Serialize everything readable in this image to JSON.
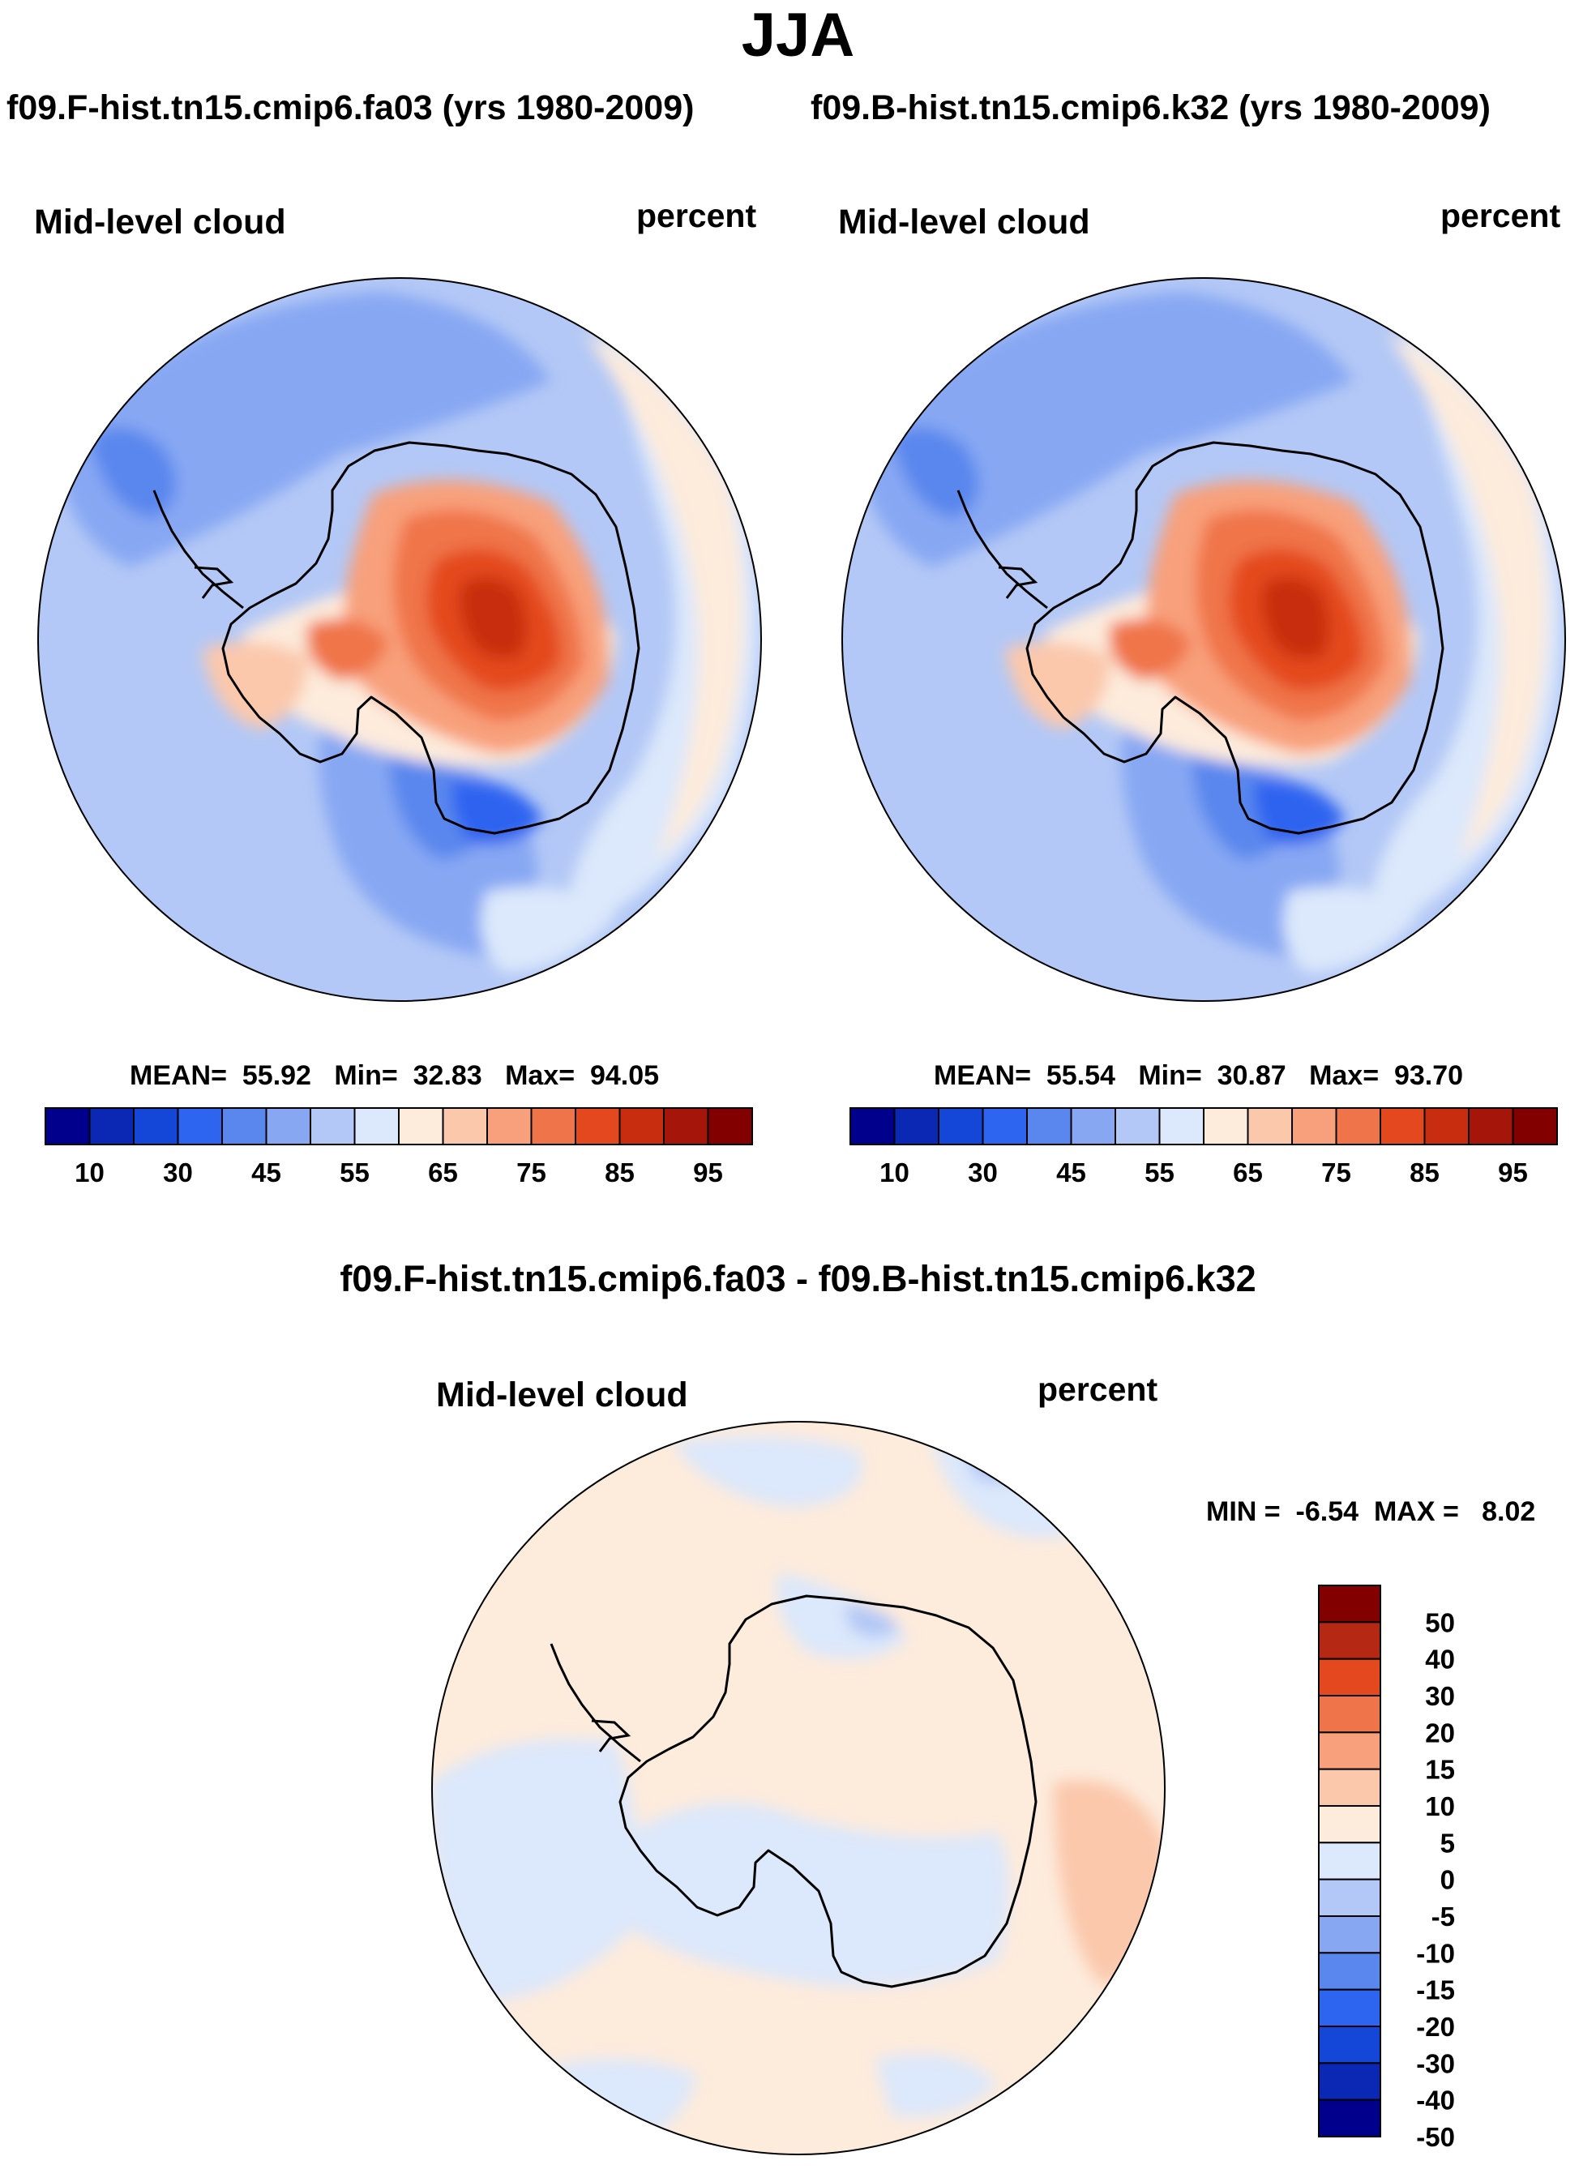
{
  "figure": {
    "season": "JJA",
    "run_a_title": "f09.F-hist.tn15.cmip6.fa03 (yrs 1980-2009)",
    "run_b_title": "f09.B-hist.tn15.cmip6.k32 (yrs 1980-2009)",
    "diff_title": "f09.F-hist.tn15.cmip6.fa03 - f09.B-hist.tn15.cmip6.k32"
  },
  "chart_data": [
    {
      "type": "heatmap",
      "projection": "south-polar-stereographic",
      "variable": "Mid-level cloud",
      "units": "percent",
      "mean_label": "MEAN=",
      "min_label": "Min=",
      "max_label": "Max=",
      "mean": "55.92",
      "min": "32.83",
      "max": "94.05",
      "colorbar": {
        "orientation": "horizontal",
        "levels": [
          10,
          20,
          30,
          40,
          45,
          50,
          55,
          60,
          65,
          70,
          75,
          80,
          85,
          90,
          95
        ],
        "tick_labels": [
          "10",
          "30",
          "45",
          "55",
          "65",
          "75",
          "85",
          "95"
        ],
        "colors": [
          "#00008c",
          "#0a28b4",
          "#1446d7",
          "#2d64f0",
          "#5a87ee",
          "#87a7f3",
          "#b3c8f6",
          "#dce8fb",
          "#fdebdc",
          "#fbc8ac",
          "#f8a07c",
          "#f0744a",
          "#e4481e",
          "#c82d0f",
          "#a5150a",
          "#820000"
        ]
      }
    },
    {
      "type": "heatmap",
      "projection": "south-polar-stereographic",
      "variable": "Mid-level cloud",
      "units": "percent",
      "mean_label": "MEAN=",
      "min_label": "Min=",
      "max_label": "Max=",
      "mean": "55.54",
      "min": "30.87",
      "max": "93.70",
      "colorbar": {
        "orientation": "horizontal",
        "levels": [
          10,
          20,
          30,
          40,
          45,
          50,
          55,
          60,
          65,
          70,
          75,
          80,
          85,
          90,
          95
        ],
        "tick_labels": [
          "10",
          "30",
          "45",
          "55",
          "65",
          "75",
          "85",
          "95"
        ],
        "colors": [
          "#00008c",
          "#0a28b4",
          "#1446d7",
          "#2d64f0",
          "#5a87ee",
          "#87a7f3",
          "#b3c8f6",
          "#dce8fb",
          "#fdebdc",
          "#fbc8ac",
          "#f8a07c",
          "#f0744a",
          "#e4481e",
          "#c82d0f",
          "#a5150a",
          "#820000"
        ]
      }
    },
    {
      "type": "heatmap",
      "projection": "south-polar-stereographic",
      "variable": "Mid-level cloud",
      "units": "percent",
      "min_label": "MIN =",
      "max_label": "MAX =",
      "min": "-6.54",
      "max": "8.02",
      "colorbar": {
        "orientation": "vertical",
        "tick_labels": [
          "50",
          "40",
          "30",
          "20",
          "15",
          "10",
          "5",
          "0",
          "-5",
          "-10",
          "-15",
          "-20",
          "-30",
          "-40",
          "-50"
        ],
        "colors": [
          "#820000",
          "#b42814",
          "#e4481e",
          "#f0744a",
          "#f8a07c",
          "#fbc8ac",
          "#fdebdc",
          "#dce8fb",
          "#b3c8f6",
          "#87a7f3",
          "#5a87ee",
          "#2d64f0",
          "#1446d7",
          "#0a28b4",
          "#00008c"
        ]
      }
    }
  ]
}
